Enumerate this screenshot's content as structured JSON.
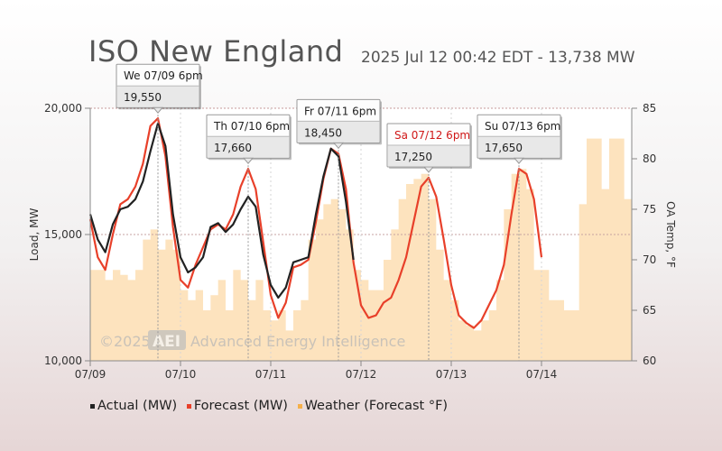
{
  "title": "ISO New England",
  "subtitle": "2025 Jul 12 00:42 EDT - 13,738 MW",
  "watermark": "©2025",
  "watermark_logo": "AEI",
  "watermark_name": "Advanced Energy Intelligence",
  "colors": {
    "actual": "#222222",
    "forecast": "#e8402a",
    "weather": "#fde3be",
    "weather_legend": "#f5b04a"
  },
  "chart_data": {
    "type": "line",
    "x_ticks": [
      "07/09",
      "07/10",
      "07/11",
      "07/12",
      "07/13",
      "07/14"
    ],
    "xlim_hours": [
      0,
      144
    ],
    "ylabel": "Load, MW",
    "y_ticks": [
      "10,000",
      "15,000",
      "20,000"
    ],
    "ylim": [
      10000,
      20000
    ],
    "y2label": "OA Temp, °F",
    "y2_ticks": [
      "60",
      "65",
      "70",
      "75",
      "80",
      "85"
    ],
    "y2lim": [
      60,
      85
    ],
    "legend": [
      "Actual (MW)",
      "Forecast (MW)",
      "Weather (Forecast °F)"
    ],
    "callouts": [
      {
        "label": "We 07/09 6pm",
        "value": "19,550",
        "hour": 18,
        "highlight": false
      },
      {
        "label": "Th 07/10 6pm",
        "value": "17,660",
        "hour": 42,
        "highlight": false
      },
      {
        "label": "Fr 07/11 6pm",
        "value": "18,450",
        "hour": 66,
        "highlight": false
      },
      {
        "label": "Sa 07/12 6pm",
        "value": "17,250",
        "hour": 90,
        "highlight": true
      },
      {
        "label": "Su 07/13 6pm",
        "value": "17,650",
        "hour": 114,
        "highlight": false
      }
    ],
    "series": [
      {
        "name": "Actual (MW)",
        "points": [
          [
            0,
            15800
          ],
          [
            2,
            14800
          ],
          [
            4,
            14300
          ],
          [
            6,
            15400
          ],
          [
            8,
            16000
          ],
          [
            10,
            16100
          ],
          [
            12,
            16400
          ],
          [
            14,
            17100
          ],
          [
            16,
            18300
          ],
          [
            18,
            19400
          ],
          [
            20,
            18500
          ],
          [
            22,
            15800
          ],
          [
            24,
            14100
          ],
          [
            26,
            13500
          ],
          [
            28,
            13700
          ],
          [
            30,
            14100
          ],
          [
            32,
            15300
          ],
          [
            34,
            15450
          ],
          [
            36,
            15100
          ],
          [
            38,
            15400
          ],
          [
            40,
            16000
          ],
          [
            42,
            16500
          ],
          [
            44,
            16100
          ],
          [
            46,
            14200
          ],
          [
            48,
            13000
          ],
          [
            50,
            12500
          ],
          [
            52,
            12900
          ],
          [
            54,
            13900
          ],
          [
            56,
            14000
          ],
          [
            58,
            14100
          ],
          [
            60,
            15800
          ],
          [
            62,
            17300
          ],
          [
            64,
            18400
          ],
          [
            66,
            18100
          ],
          [
            68,
            16300
          ],
          [
            70,
            14000
          ]
        ]
      },
      {
        "name": "Forecast (MW)",
        "points": [
          [
            0,
            15600
          ],
          [
            2,
            14100
          ],
          [
            4,
            13600
          ],
          [
            6,
            15000
          ],
          [
            8,
            16200
          ],
          [
            10,
            16400
          ],
          [
            12,
            16900
          ],
          [
            14,
            17800
          ],
          [
            16,
            19300
          ],
          [
            18,
            19600
          ],
          [
            20,
            18100
          ],
          [
            22,
            15300
          ],
          [
            24,
            13200
          ],
          [
            26,
            12900
          ],
          [
            28,
            13800
          ],
          [
            30,
            14500
          ],
          [
            32,
            15200
          ],
          [
            34,
            15400
          ],
          [
            36,
            15200
          ],
          [
            38,
            15800
          ],
          [
            40,
            16900
          ],
          [
            42,
            17600
          ],
          [
            44,
            16800
          ],
          [
            46,
            14700
          ],
          [
            48,
            12600
          ],
          [
            50,
            11700
          ],
          [
            52,
            12300
          ],
          [
            54,
            13700
          ],
          [
            56,
            13800
          ],
          [
            58,
            14000
          ],
          [
            60,
            15500
          ],
          [
            62,
            17200
          ],
          [
            64,
            18400
          ],
          [
            66,
            18200
          ],
          [
            68,
            16800
          ],
          [
            70,
            13900
          ],
          [
            72,
            12200
          ],
          [
            74,
            11700
          ],
          [
            76,
            11800
          ],
          [
            78,
            12300
          ],
          [
            80,
            12500
          ],
          [
            82,
            13200
          ],
          [
            84,
            14100
          ],
          [
            86,
            15500
          ],
          [
            88,
            16900
          ],
          [
            90,
            17250
          ],
          [
            92,
            16500
          ],
          [
            94,
            14800
          ],
          [
            96,
            13000
          ],
          [
            98,
            11800
          ],
          [
            100,
            11500
          ],
          [
            102,
            11300
          ],
          [
            104,
            11600
          ],
          [
            106,
            12200
          ],
          [
            108,
            12800
          ],
          [
            110,
            13800
          ],
          [
            112,
            15800
          ],
          [
            114,
            17600
          ],
          [
            116,
            17400
          ],
          [
            118,
            16400
          ],
          [
            120,
            14100
          ]
        ]
      },
      {
        "name": "Weather (Forecast °F)",
        "unit": "F",
        "points": [
          [
            0,
            69
          ],
          [
            2,
            69
          ],
          [
            4,
            68
          ],
          [
            6,
            69
          ],
          [
            8,
            68.5
          ],
          [
            10,
            68
          ],
          [
            12,
            69
          ],
          [
            14,
            72
          ],
          [
            16,
            73
          ],
          [
            18,
            71
          ],
          [
            20,
            72
          ],
          [
            22,
            71
          ],
          [
            24,
            67
          ],
          [
            26,
            66
          ],
          [
            28,
            67
          ],
          [
            30,
            65
          ],
          [
            32,
            66.5
          ],
          [
            34,
            68
          ],
          [
            36,
            65
          ],
          [
            38,
            69
          ],
          [
            40,
            68
          ],
          [
            42,
            66
          ],
          [
            44,
            68
          ],
          [
            46,
            65
          ],
          [
            48,
            64
          ],
          [
            50,
            65
          ],
          [
            52,
            63
          ],
          [
            54,
            65
          ],
          [
            56,
            66
          ],
          [
            58,
            72
          ],
          [
            60,
            74
          ],
          [
            62,
            75.5
          ],
          [
            64,
            76
          ],
          [
            66,
            75
          ],
          [
            68,
            73
          ],
          [
            70,
            69
          ],
          [
            72,
            68
          ],
          [
            74,
            67
          ],
          [
            76,
            67
          ],
          [
            78,
            70
          ],
          [
            80,
            73
          ],
          [
            82,
            76
          ],
          [
            84,
            77.5
          ],
          [
            86,
            78
          ],
          [
            88,
            78.5
          ],
          [
            90,
            76
          ],
          [
            92,
            71
          ],
          [
            94,
            68
          ],
          [
            96,
            66
          ],
          [
            98,
            64
          ],
          [
            100,
            63.5
          ],
          [
            102,
            63
          ],
          [
            104,
            64
          ],
          [
            106,
            65
          ],
          [
            108,
            68
          ],
          [
            110,
            75
          ],
          [
            112,
            78.5
          ],
          [
            114,
            79
          ],
          [
            116,
            77
          ],
          [
            118,
            69
          ],
          [
            120,
            69
          ],
          [
            122,
            66
          ],
          [
            124,
            66
          ],
          [
            126,
            65
          ],
          [
            128,
            65
          ],
          [
            130,
            75.5
          ],
          [
            132,
            82
          ],
          [
            134,
            82
          ],
          [
            136,
            77
          ],
          [
            138,
            82
          ],
          [
            140,
            82
          ],
          [
            142,
            76
          ],
          [
            144,
            75
          ]
        ]
      }
    ]
  }
}
